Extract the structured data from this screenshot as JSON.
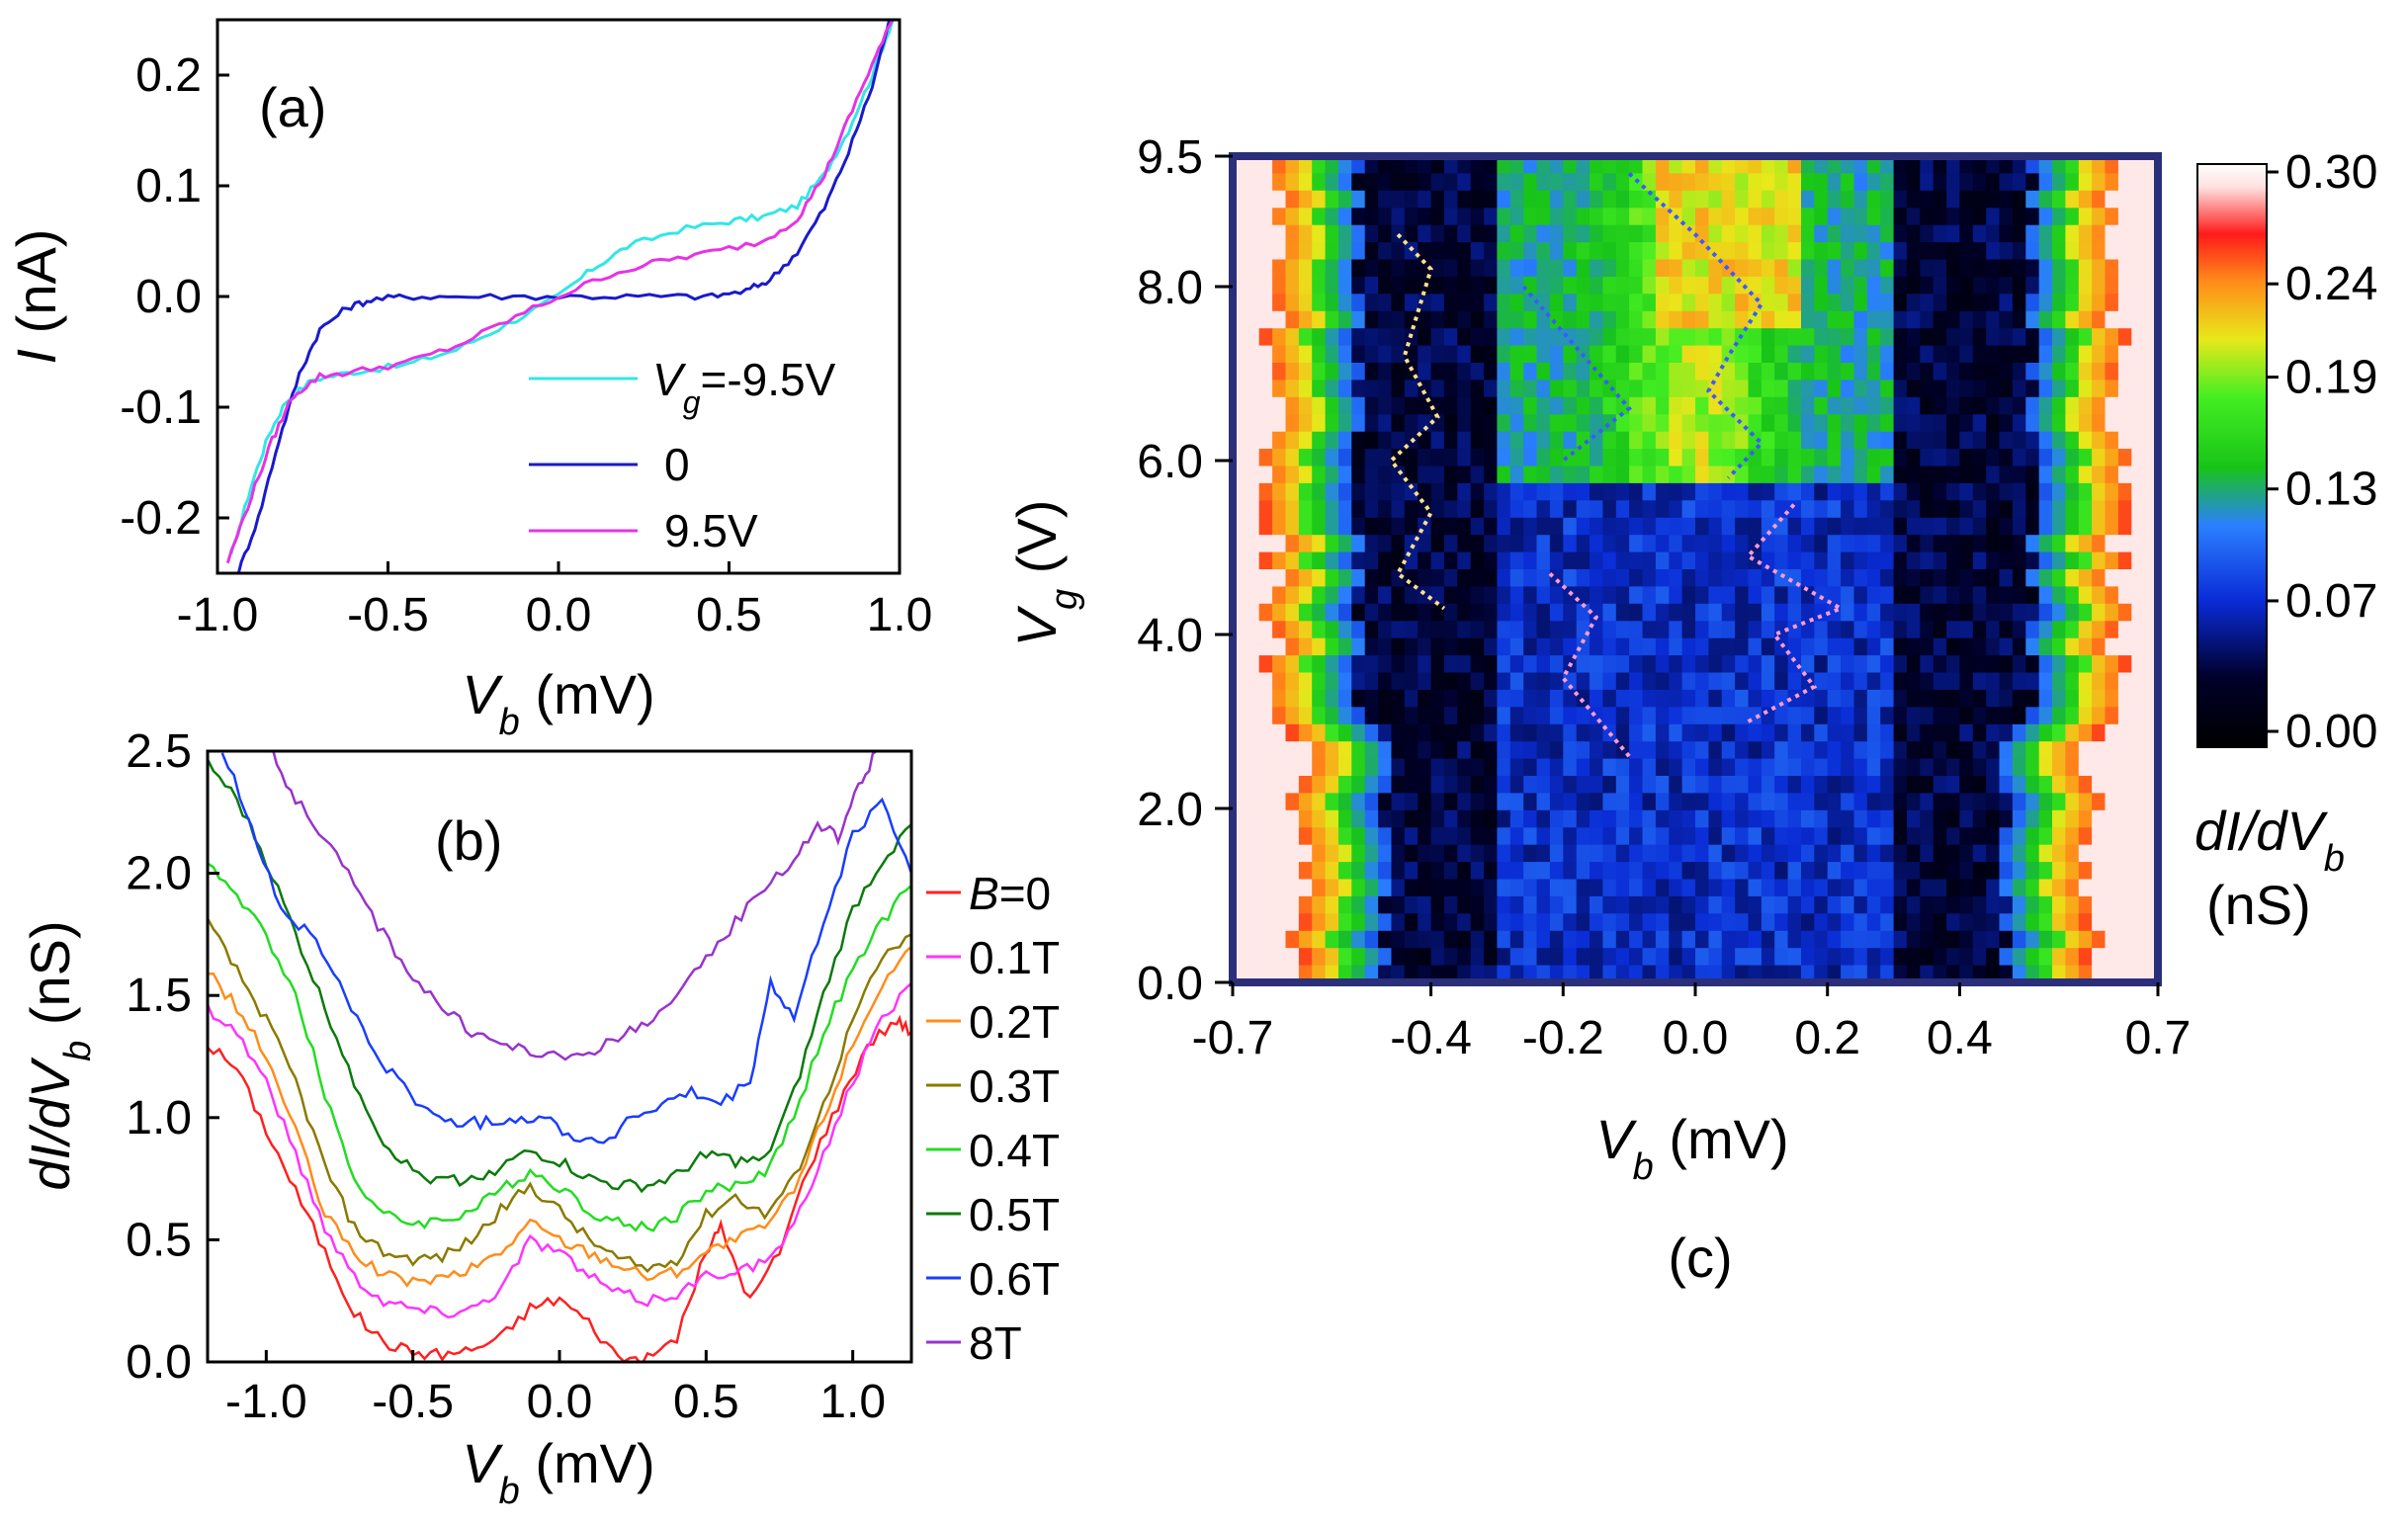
{
  "chart_data": [
    {
      "id": "a",
      "type": "line",
      "panel_label": "(a)",
      "xlabel_var": "V",
      "xlabel_sub": "b",
      "xlabel_unit": " (mV)",
      "ylabel_var": "I",
      "ylabel_unit": " (nA)",
      "xlim": [
        -1.0,
        1.0
      ],
      "ylim": [
        -0.25,
        0.25
      ],
      "xticks": [
        -1.0,
        -0.5,
        0.0,
        0.5,
        1.0
      ],
      "xtick_labels": [
        "-1.0",
        "-0.5",
        "0.0",
        "0.5",
        "1.0"
      ],
      "yticks": [
        -0.2,
        -0.1,
        0.0,
        0.1,
        0.2
      ],
      "ytick_labels": [
        "-0.2",
        "-0.1",
        "0.0",
        "0.1",
        "0.2"
      ],
      "legend": {
        "first_var": "V",
        "first_sub": "g",
        "first_rest": "=-9.5V",
        "labels": [
          "0",
          "9.5V"
        ]
      },
      "series": [
        {
          "name": "Vg=-9.5V",
          "color": "#33e6e6",
          "x": [
            -0.96,
            -0.9,
            -0.85,
            -0.8,
            -0.72,
            -0.6,
            -0.45,
            -0.3,
            -0.15,
            0.0,
            0.1,
            0.2,
            0.35,
            0.5,
            0.6,
            0.7,
            0.78,
            0.85,
            0.92,
            0.98
          ],
          "y": [
            -0.235,
            -0.17,
            -0.125,
            -0.095,
            -0.075,
            -0.068,
            -0.062,
            -0.048,
            -0.025,
            0.0,
            0.025,
            0.045,
            0.06,
            0.068,
            0.072,
            0.082,
            0.11,
            0.15,
            0.2,
            0.25
          ]
        },
        {
          "name": "0",
          "color": "#1a1acc",
          "x": [
            -0.94,
            -0.88,
            -0.82,
            -0.76,
            -0.7,
            -0.62,
            -0.55,
            -0.45,
            -0.3,
            -0.1,
            0.1,
            0.3,
            0.45,
            0.55,
            0.62,
            0.7,
            0.78,
            0.85,
            0.92,
            0.97
          ],
          "y": [
            -0.25,
            -0.2,
            -0.13,
            -0.07,
            -0.03,
            -0.01,
            -0.003,
            0.0,
            0.0,
            0.0,
            0.0,
            0.0,
            0.0,
            0.005,
            0.015,
            0.04,
            0.08,
            0.13,
            0.19,
            0.25
          ]
        },
        {
          "name": "9.5V",
          "color": "#e633e6",
          "x": [
            -0.97,
            -0.9,
            -0.84,
            -0.78,
            -0.7,
            -0.6,
            -0.45,
            -0.3,
            -0.15,
            0.0,
            0.15,
            0.3,
            0.45,
            0.6,
            0.7,
            0.78,
            0.85,
            0.92,
            0.98
          ],
          "y": [
            -0.24,
            -0.18,
            -0.13,
            -0.09,
            -0.072,
            -0.068,
            -0.06,
            -0.045,
            -0.022,
            0.0,
            0.02,
            0.032,
            0.04,
            0.05,
            0.07,
            0.11,
            0.16,
            0.21,
            0.25
          ]
        }
      ]
    },
    {
      "id": "b",
      "type": "line",
      "panel_label": "(b)",
      "xlabel_var": "V",
      "xlabel_sub": "b",
      "xlabel_unit": " (mV)",
      "ylabel_var": "dI/dV",
      "ylabel_sub": "b",
      "ylabel_unit": " (nS)",
      "xlim": [
        -1.2,
        1.2
      ],
      "ylim": [
        0.0,
        2.5
      ],
      "xticks": [
        -1.0,
        -0.5,
        0.0,
        0.5,
        1.0
      ],
      "xtick_labels": [
        "-1.0",
        "-0.5",
        "0.0",
        "0.5",
        "1.0"
      ],
      "yticks": [
        0.0,
        0.5,
        1.0,
        1.5,
        2.0,
        2.5
      ],
      "ytick_labels": [
        "0.0",
        "0.5",
        "1.0",
        "1.5",
        "2.0",
        "2.5"
      ],
      "legend_first_var": "B",
      "legend_first_rest": "=0",
      "series": [
        {
          "name": "B=0",
          "legend": "B=0",
          "color": "#ff2020",
          "x": [
            -1.2,
            -1.1,
            -1.0,
            -0.9,
            -0.8,
            -0.7,
            -0.6,
            -0.5,
            -0.4,
            -0.3,
            -0.2,
            -0.1,
            0.0,
            0.1,
            0.2,
            0.3,
            0.4,
            0.5,
            0.55,
            0.65,
            0.75,
            0.85,
            0.95,
            1.05,
            1.15,
            1.2
          ],
          "y": [
            1.3,
            1.2,
            0.95,
            0.7,
            0.45,
            0.2,
            0.08,
            0.04,
            0.03,
            0.05,
            0.1,
            0.22,
            0.26,
            0.16,
            0.02,
            0.01,
            0.1,
            0.45,
            0.55,
            0.25,
            0.45,
            0.8,
            1.05,
            1.3,
            1.4,
            1.35
          ]
        },
        {
          "name": "0.1T",
          "legend": "0.1T",
          "color": "#ff33ff",
          "x": [
            -1.2,
            -1.1,
            -1.0,
            -0.9,
            -0.8,
            -0.7,
            -0.6,
            -0.5,
            -0.4,
            -0.3,
            -0.2,
            -0.1,
            0.0,
            0.1,
            0.2,
            0.3,
            0.4,
            0.5,
            0.6,
            0.7,
            0.8,
            0.9,
            1.0,
            1.1,
            1.2
          ],
          "y": [
            1.45,
            1.35,
            1.15,
            0.85,
            0.55,
            0.35,
            0.25,
            0.22,
            0.2,
            0.22,
            0.3,
            0.5,
            0.45,
            0.35,
            0.28,
            0.25,
            0.28,
            0.35,
            0.38,
            0.4,
            0.55,
            0.85,
            1.15,
            1.4,
            1.55
          ]
        },
        {
          "name": "0.2T",
          "legend": "0.2T",
          "color": "#ff8c1a",
          "x": [
            -1.2,
            -1.1,
            -1.0,
            -0.9,
            -0.8,
            -0.7,
            -0.6,
            -0.5,
            -0.4,
            -0.3,
            -0.2,
            -0.1,
            0.0,
            0.1,
            0.2,
            0.3,
            0.4,
            0.5,
            0.6,
            0.7,
            0.8,
            0.9,
            1.0,
            1.1,
            1.2
          ],
          "y": [
            1.6,
            1.45,
            1.25,
            0.95,
            0.6,
            0.45,
            0.35,
            0.33,
            0.34,
            0.38,
            0.45,
            0.57,
            0.5,
            0.45,
            0.4,
            0.35,
            0.37,
            0.45,
            0.5,
            0.55,
            0.7,
            1.0,
            1.3,
            1.55,
            1.7
          ]
        },
        {
          "name": "0.3T",
          "legend": "0.3T",
          "color": "#8a7a00",
          "x": [
            -1.2,
            -1.1,
            -1.0,
            -0.9,
            -0.8,
            -0.7,
            -0.6,
            -0.5,
            -0.4,
            -0.3,
            -0.2,
            -0.1,
            0.0,
            0.1,
            0.2,
            0.3,
            0.4,
            0.5,
            0.6,
            0.7,
            0.8,
            0.9,
            1.0,
            1.1,
            1.2
          ],
          "y": [
            1.8,
            1.6,
            1.4,
            1.15,
            0.8,
            0.55,
            0.45,
            0.42,
            0.43,
            0.5,
            0.62,
            0.72,
            0.62,
            0.5,
            0.42,
            0.38,
            0.42,
            0.6,
            0.68,
            0.6,
            0.75,
            1.05,
            1.4,
            1.65,
            1.75
          ]
        },
        {
          "name": "0.4T",
          "legend": "0.4T",
          "color": "#22dd22",
          "x": [
            -1.2,
            -1.1,
            -1.0,
            -0.9,
            -0.8,
            -0.7,
            -0.6,
            -0.5,
            -0.4,
            -0.3,
            -0.2,
            -0.1,
            0.0,
            0.1,
            0.2,
            0.3,
            0.4,
            0.5,
            0.6,
            0.7,
            0.8,
            0.9,
            1.0,
            1.1,
            1.2
          ],
          "y": [
            2.05,
            1.9,
            1.75,
            1.5,
            1.1,
            0.75,
            0.6,
            0.57,
            0.58,
            0.62,
            0.7,
            0.78,
            0.72,
            0.62,
            0.57,
            0.55,
            0.6,
            0.7,
            0.72,
            0.78,
            1.0,
            1.35,
            1.6,
            1.8,
            1.95
          ]
        },
        {
          "name": "0.5T",
          "legend": "0.5T",
          "color": "#0b7a0b",
          "x": [
            -1.2,
            -1.1,
            -1.0,
            -0.9,
            -0.8,
            -0.7,
            -0.6,
            -0.5,
            -0.4,
            -0.3,
            -0.2,
            -0.1,
            0.0,
            0.1,
            0.2,
            0.3,
            0.4,
            0.5,
            0.6,
            0.7,
            0.8,
            0.9,
            1.0,
            1.1,
            1.2
          ],
          "y": [
            2.45,
            2.3,
            2.05,
            1.75,
            1.45,
            1.15,
            0.9,
            0.78,
            0.74,
            0.75,
            0.8,
            0.86,
            0.82,
            0.75,
            0.72,
            0.72,
            0.76,
            0.86,
            0.82,
            0.82,
            1.1,
            1.5,
            1.85,
            2.05,
            2.2
          ]
        },
        {
          "name": "0.6T",
          "legend": "0.6T",
          "color": "#1a3dff",
          "x": [
            -1.15,
            -1.05,
            -0.95,
            -0.85,
            -0.75,
            -0.65,
            -0.55,
            -0.45,
            -0.35,
            -0.25,
            -0.15,
            -0.05,
            0.05,
            0.15,
            0.25,
            0.35,
            0.45,
            0.55,
            0.65,
            0.72,
            0.8,
            0.9,
            1.0,
            1.1,
            1.2
          ],
          "y": [
            2.5,
            2.2,
            1.85,
            1.75,
            1.55,
            1.3,
            1.15,
            1.02,
            0.98,
            0.98,
            1.0,
            1.0,
            0.92,
            0.9,
            1.0,
            1.05,
            1.1,
            1.05,
            1.15,
            1.55,
            1.4,
            1.8,
            2.15,
            2.3,
            2.0
          ]
        },
        {
          "name": "8T",
          "legend": "8T",
          "color": "#9933cc",
          "x": [
            -0.98,
            -0.9,
            -0.8,
            -0.7,
            -0.6,
            -0.5,
            -0.4,
            -0.3,
            -0.2,
            -0.1,
            0.0,
            0.1,
            0.2,
            0.3,
            0.4,
            0.5,
            0.6,
            0.7,
            0.8,
            0.88,
            0.95,
            1.02,
            1.08
          ],
          "y": [
            2.5,
            2.3,
            2.15,
            1.95,
            1.75,
            1.58,
            1.45,
            1.35,
            1.3,
            1.27,
            1.24,
            1.27,
            1.32,
            1.4,
            1.48,
            1.65,
            1.8,
            1.95,
            2.05,
            2.2,
            2.15,
            2.35,
            2.5
          ]
        }
      ]
    },
    {
      "id": "c",
      "type": "heatmap",
      "panel_label": "(c)",
      "xlabel_var": "V",
      "xlabel_sub": "b",
      "xlabel_unit": " (mV)",
      "ylabel_var": "V",
      "ylabel_sub": "g",
      "ylabel_unit": " (V)",
      "xlim": [
        -0.7,
        0.7
      ],
      "ylim": [
        0.0,
        9.5
      ],
      "xticks": [
        -0.7,
        -0.4,
        -0.2,
        0.0,
        0.2,
        0.4,
        0.7
      ],
      "xtick_labels": [
        "-0.7",
        "-0.4",
        "-0.2",
        "0.0",
        "0.2",
        "0.4",
        "0.7"
      ],
      "yticks": [
        0.0,
        2.0,
        4.0,
        6.0,
        8.0,
        9.5
      ],
      "ytick_labels": [
        "0.0",
        "2.0",
        "4.0",
        "6.0",
        "8.0",
        "9.5"
      ],
      "colorbar": {
        "label_var": "dI/dV",
        "label_sub": "b",
        "unit": "(nS)",
        "range": [
          0.0,
          0.3
        ],
        "ticks": [
          0.3,
          0.24,
          0.19,
          0.13,
          0.07,
          0.0
        ],
        "tick_labels": [
          "0.30",
          "0.24",
          "0.19",
          "0.13",
          "0.07",
          "0.00"
        ]
      },
      "description_rows": 48,
      "description_cols": 70,
      "diamond_guides": [
        {
          "color": "#ffe08a",
          "points": [
            [
              -0.45,
              8.6
            ],
            [
              -0.4,
              8.2
            ],
            [
              -0.44,
              7.2
            ],
            [
              -0.39,
              6.5
            ],
            [
              -0.46,
              6.0
            ],
            [
              -0.4,
              5.4
            ],
            [
              -0.45,
              4.7
            ],
            [
              -0.38,
              4.3
            ]
          ]
        },
        {
          "color": "#3a5bff",
          "points": [
            [
              -0.26,
              8.0
            ],
            [
              -0.18,
              7.3
            ],
            [
              -0.1,
              6.6
            ],
            [
              -0.2,
              6.0
            ]
          ]
        },
        {
          "color": "#3a5bff",
          "points": [
            [
              -0.1,
              9.3
            ],
            [
              0.0,
              8.6
            ],
            [
              0.1,
              7.8
            ],
            [
              0.05,
              7.2
            ],
            [
              0.02,
              6.8
            ],
            [
              0.1,
              6.2
            ],
            [
              0.05,
              5.8
            ]
          ]
        },
        {
          "color": "#ff9bd0",
          "points": [
            [
              -0.22,
              4.7
            ],
            [
              -0.15,
              4.2
            ],
            [
              -0.2,
              3.5
            ],
            [
              -0.1,
              2.6
            ]
          ]
        },
        {
          "color": "#ff9bd0",
          "points": [
            [
              0.08,
              3.0
            ],
            [
              0.18,
              3.4
            ],
            [
              0.12,
              4.0
            ],
            [
              0.22,
              4.3
            ],
            [
              0.08,
              4.9
            ],
            [
              0.15,
              5.5
            ]
          ]
        }
      ]
    }
  ]
}
